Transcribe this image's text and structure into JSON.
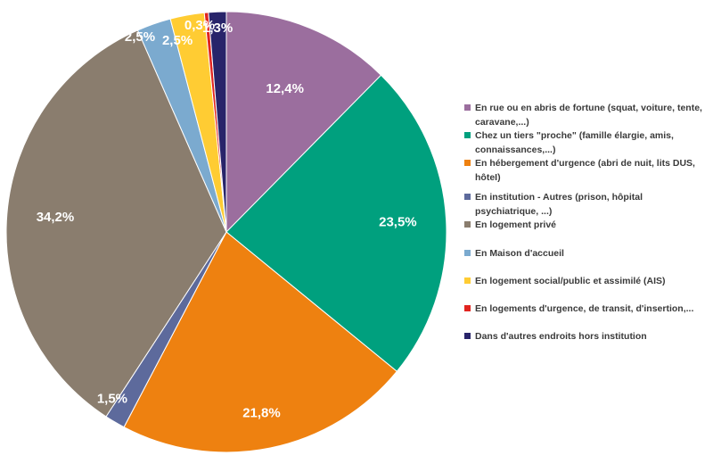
{
  "chart_data": {
    "type": "pie",
    "slices": [
      {
        "label": "En rue ou en abris de fortune  (squat, voiture, tente, caravane,...)",
        "value": 12.4,
        "display": "12,4%",
        "color": "#9B6E9E"
      },
      {
        "label": "Chez un tiers \"proche\" (famille élargie, amis, connaissances,...)",
        "value": 23.5,
        "display": "23,5%",
        "color": "#00A07E"
      },
      {
        "label": "En hébergement d'urgence (abri de nuit, lits DUS, hôteI)",
        "value": 21.8,
        "display": "21,8%",
        "color": "#EE8110"
      },
      {
        "label": "En institution - Autres (prison, hôpital psychiatrique, ...)",
        "value": 1.5,
        "display": "1,5%",
        "color": "#5D6A9C"
      },
      {
        "label": "En logement privé",
        "value": 34.2,
        "display": "34,2%",
        "color": "#8A7D6E"
      },
      {
        "label": "En Maison d'accueil",
        "value": 2.5,
        "display": "2,5%",
        "color": "#7BAACF"
      },
      {
        "label": "En logement social/public et assimilé (AIS)",
        "value": 2.5,
        "display": "2,5%",
        "color": "#FFCC33"
      },
      {
        "label": "En logements d'urgence, de transit, d'insertion,...",
        "value": 0.3,
        "display": "0,3%",
        "color": "#E1241F"
      },
      {
        "label": "Dans d'autres endroits hors institution",
        "value": 1.3,
        "display": "1,3%",
        "color": "#28246A"
      }
    ],
    "legend_position": "right"
  }
}
